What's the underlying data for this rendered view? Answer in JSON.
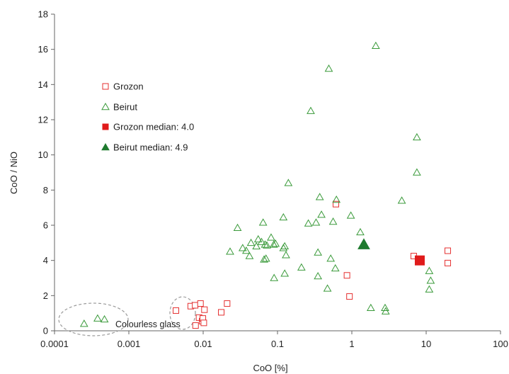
{
  "chart_data": {
    "type": "scatter",
    "title": "",
    "xlabel": "CoO [%]",
    "ylabel": "CoO / NiO",
    "xscale": "log",
    "xlim": [
      0.0001,
      100
    ],
    "ylim": [
      0,
      18
    ],
    "xticks": [
      0.0001,
      0.001,
      0.01,
      0.1,
      1,
      10,
      100
    ],
    "xtick_labels": [
      "0.0001",
      "0.001",
      "0.01",
      "0.1",
      "1",
      "10",
      "100"
    ],
    "yticks": [
      0,
      2,
      4,
      6,
      8,
      10,
      12,
      14,
      16,
      18
    ],
    "ytick_labels": [
      "0",
      "2",
      "4",
      "6",
      "8",
      "10",
      "12",
      "14",
      "16",
      "18"
    ],
    "grid": false,
    "legend_position": "upper-left",
    "series": [
      {
        "name": "Grozon",
        "marker": "square-open",
        "color": "#e53030",
        "points": [
          [
            0.0043,
            1.15
          ],
          [
            0.0068,
            1.4
          ],
          [
            0.0078,
            1.45
          ],
          [
            0.0092,
            1.55
          ],
          [
            0.0088,
            0.75
          ],
          [
            0.0097,
            0.55
          ],
          [
            0.0099,
            0.7
          ],
          [
            0.0102,
            0.45
          ],
          [
            0.0104,
            1.2
          ],
          [
            0.0079,
            0.3
          ],
          [
            0.0175,
            1.05
          ],
          [
            0.021,
            1.55
          ],
          [
            0.61,
            7.2
          ],
          [
            0.86,
            3.15
          ],
          [
            0.93,
            1.95
          ],
          [
            6.8,
            4.25
          ],
          [
            19.5,
            4.55
          ],
          [
            19.5,
            3.85
          ]
        ]
      },
      {
        "name": "Beirut",
        "marker": "triangle-open",
        "color": "#3a9a3a",
        "points": [
          [
            0.00025,
            0.4
          ],
          [
            0.00038,
            0.7
          ],
          [
            0.00047,
            0.65
          ],
          [
            0.023,
            4.5
          ],
          [
            0.029,
            5.85
          ],
          [
            0.034,
            4.7
          ],
          [
            0.038,
            4.55
          ],
          [
            0.042,
            4.25
          ],
          [
            0.044,
            5.0
          ],
          [
            0.052,
            4.8
          ],
          [
            0.055,
            5.2
          ],
          [
            0.061,
            5.05
          ],
          [
            0.064,
            6.15
          ],
          [
            0.066,
            4.05
          ],
          [
            0.068,
            4.9
          ],
          [
            0.07,
            4.1
          ],
          [
            0.072,
            4.85
          ],
          [
            0.082,
            5.3
          ],
          [
            0.089,
            4.9
          ],
          [
            0.09,
            3.0
          ],
          [
            0.094,
            4.95
          ],
          [
            0.12,
            6.45
          ],
          [
            0.12,
            4.7
          ],
          [
            0.125,
            4.8
          ],
          [
            0.13,
            4.3
          ],
          [
            0.125,
            3.25
          ],
          [
            0.14,
            8.4
          ],
          [
            0.21,
            3.6
          ],
          [
            0.26,
            6.1
          ],
          [
            0.28,
            12.5
          ],
          [
            0.33,
            6.15
          ],
          [
            0.35,
            4.45
          ],
          [
            0.35,
            3.1
          ],
          [
            0.37,
            7.6
          ],
          [
            0.39,
            6.6
          ],
          [
            0.47,
            2.4
          ],
          [
            0.49,
            14.9
          ],
          [
            0.52,
            4.1
          ],
          [
            0.56,
            6.2
          ],
          [
            0.6,
            3.55
          ],
          [
            0.62,
            7.45
          ],
          [
            0.97,
            6.55
          ],
          [
            1.3,
            5.6
          ],
          [
            1.8,
            1.3
          ],
          [
            2.1,
            16.2
          ],
          [
            2.8,
            1.3
          ],
          [
            2.85,
            1.1
          ],
          [
            4.7,
            7.4
          ],
          [
            7.5,
            11.0
          ],
          [
            7.5,
            9.0
          ],
          [
            11.0,
            3.4
          ],
          [
            11.5,
            2.85
          ],
          [
            11.0,
            2.35
          ]
        ]
      },
      {
        "name": "Grozon median: 4.0",
        "marker": "square-filled",
        "color": "#e01b1b",
        "points": [
          [
            8.2,
            4.0
          ]
        ]
      },
      {
        "name": "Beirut median: 4.9",
        "marker": "triangle-filled",
        "color": "#1e7a2e",
        "points": [
          [
            1.45,
            4.9
          ]
        ]
      }
    ],
    "annotations": [
      {
        "text": "Colourless glass",
        "kind": "dashed-ellipses-label"
      }
    ]
  }
}
